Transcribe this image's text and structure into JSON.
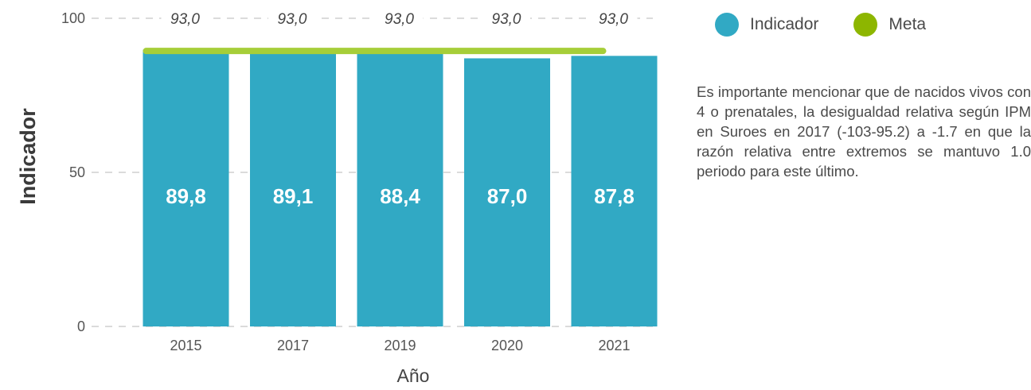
{
  "legend": {
    "indicator_label": "Indicador",
    "meta_label": "Meta"
  },
  "note_text": "Es importante mencionar que de nacidos vivos con 4 o prenatales, la desigualdad relativa según IPM en Suroes en 2017 (-103-95.2) a -1.7 en que la razón relativa entre extremos se mantuvo 1.0 periodo para este último.",
  "colors": {
    "indicator": "#31a9c4",
    "meta": "#8db600",
    "meta_line": "#a6ce39",
    "grid": "#cfcfcf"
  },
  "chart_data": {
    "type": "bar",
    "categories": [
      "2015",
      "2017",
      "2019",
      "2020",
      "2021"
    ],
    "series": [
      {
        "name": "Indicador",
        "values": [
          89.8,
          89.1,
          88.4,
          87.0,
          87.8
        ],
        "value_labels": [
          "89,8",
          "89,1",
          "88,4",
          "87,0",
          "87,8"
        ]
      },
      {
        "name": "Meta",
        "values": [
          93.0,
          93.0,
          93.0,
          93.0,
          93.0
        ],
        "value_labels": [
          "93,0",
          "93,0",
          "93,0",
          "93,0",
          "93,0"
        ]
      }
    ],
    "xlabel": "Año",
    "ylabel": "Indicador",
    "ylim": [
      0,
      100
    ],
    "yticks": [
      "0",
      "50",
      "100"
    ],
    "ytick_values": [
      0,
      50,
      100
    ],
    "grid": true,
    "legend_position": "top-right"
  }
}
